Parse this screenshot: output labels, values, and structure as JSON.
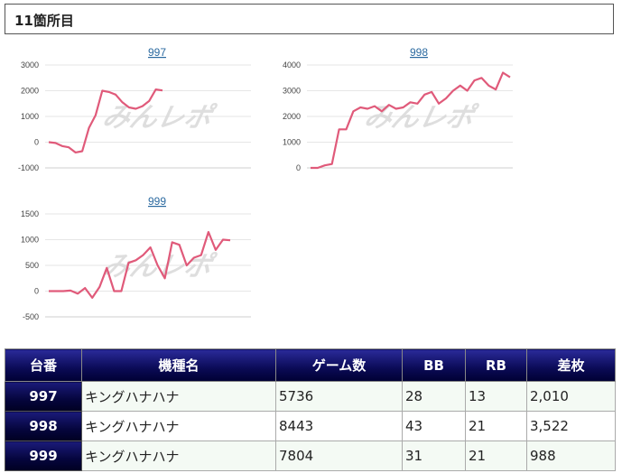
{
  "header": {
    "title": "11箇所目"
  },
  "chart_data": [
    {
      "type": "line",
      "title": "997",
      "ylim": [
        -1000,
        3000
      ],
      "yticks": [
        3000,
        2000,
        1000,
        0,
        -1000
      ],
      "values": [
        0,
        -30,
        -150,
        -200,
        -400,
        -350,
        550,
        1050,
        2000,
        1950,
        1850,
        1550,
        1350,
        1300,
        1400,
        1600,
        2050,
        2010
      ],
      "color": "#e05a7a"
    },
    {
      "type": "line",
      "title": "998",
      "ylim": [
        0,
        4000
      ],
      "yticks": [
        4000,
        3000,
        2000,
        1000,
        0
      ],
      "values": [
        0,
        0,
        100,
        150,
        1500,
        1500,
        2200,
        2350,
        2300,
        2400,
        2200,
        2450,
        2300,
        2350,
        2550,
        2500,
        2850,
        2950,
        2500,
        2700,
        3000,
        3200,
        3000,
        3400,
        3500,
        3200,
        3050,
        3700,
        3522
      ],
      "color": "#e05a7a"
    },
    {
      "type": "line",
      "title": "999",
      "ylim": [
        -500,
        1500
      ],
      "yticks": [
        1500,
        1000,
        500,
        0,
        -500
      ],
      "values": [
        0,
        0,
        0,
        10,
        -50,
        60,
        -130,
        80,
        450,
        0,
        0,
        550,
        600,
        700,
        850,
        500,
        250,
        950,
        900,
        500,
        650,
        700,
        1150,
        800,
        1000,
        988
      ],
      "color": "#e05a7a"
    }
  ],
  "watermark": "みんレポ",
  "table": {
    "headers": [
      "台番",
      "機種名",
      "ゲーム数",
      "BB",
      "RB",
      "差枚"
    ],
    "rows": [
      {
        "unit": "997",
        "machine": "キングハナハナ",
        "games": "5736",
        "bb": "28",
        "rb": "13",
        "diff": "2,010"
      },
      {
        "unit": "998",
        "machine": "キングハナハナ",
        "games": "8443",
        "bb": "43",
        "rb": "21",
        "diff": "3,522"
      },
      {
        "unit": "999",
        "machine": "キングハナハナ",
        "games": "7804",
        "bb": "31",
        "rb": "21",
        "diff": "988"
      }
    ]
  }
}
